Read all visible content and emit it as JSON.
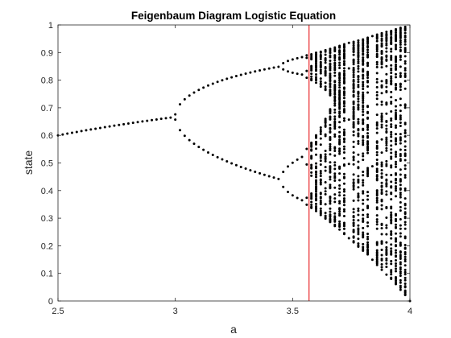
{
  "chart_data": {
    "type": "scatter",
    "title": "Feigenbaum Diagram Logistic Equation",
    "xlabel": "a",
    "ylabel": "state",
    "xlim": [
      2.5,
      4
    ],
    "ylim": [
      0,
      1
    ],
    "x_ticks": [
      "2.5",
      "3",
      "3.5",
      "4"
    ],
    "y_ticks": [
      "0",
      "0.1",
      "0.2",
      "0.3",
      "0.4",
      "0.5",
      "0.6",
      "0.7",
      "0.8",
      "0.9",
      "1"
    ],
    "x_tick_values": [
      2.5,
      3,
      3.5,
      4
    ],
    "y_tick_values": [
      0,
      0.1,
      0.2,
      0.3,
      0.4,
      0.5,
      0.6,
      0.7,
      0.8,
      0.9,
      1
    ],
    "grid": false,
    "model": "x_next = a * x * (1 - x)",
    "a_step": 0.02,
    "series_color": "#000000",
    "vertical_line": {
      "x": 3.57,
      "color": "#e8282b"
    }
  }
}
